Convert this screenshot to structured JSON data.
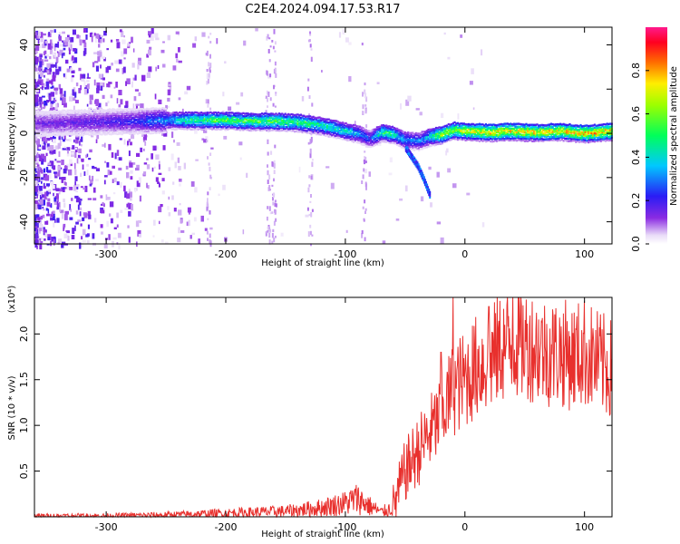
{
  "figure": {
    "title": "C2E4.2024.094.17.53.R17"
  },
  "chart_data": [
    {
      "type": "heatmap",
      "title": "C2E4.2024.094.17.53.R17",
      "xlabel": "Height of straight line (km)",
      "ylabel": "Frequency (Hz)",
      "xlim": [
        -360,
        123
      ],
      "ylim": [
        -50,
        48
      ],
      "x_ticks": [
        -300,
        -200,
        -100,
        0,
        100
      ],
      "x_tick_labels": [
        "-300",
        "-200",
        "-100",
        "0",
        "100"
      ],
      "y_ticks": [
        -40,
        -20,
        0,
        20,
        40
      ],
      "y_tick_labels": [
        "-40",
        "-20",
        "0",
        "20",
        "40"
      ],
      "colorbar": {
        "label": "Normalized spectral amplitude",
        "range": [
          0,
          1
        ],
        "ticks": [
          0.0,
          0.2,
          0.4,
          0.6,
          0.8
        ],
        "tick_labels": [
          "0.0",
          "0.2",
          "0.4",
          "0.6",
          "0.8"
        ],
        "colormap": "rainbow (white-violet-blue-cyan-green-yellow-red-magenta)"
      },
      "ridge": {
        "x": [
          -355,
          -320,
          -280,
          -250,
          -230,
          -200,
          -180,
          -160,
          -140,
          -120,
          -100,
          -90,
          -80,
          -70,
          -60,
          -50,
          -40,
          -30,
          -20,
          -10,
          0,
          20,
          40,
          60,
          80,
          100,
          123
        ],
        "y": [
          5,
          5.5,
          6,
          6.5,
          6.5,
          6.5,
          6,
          6,
          5.5,
          4,
          1.5,
          0.5,
          -2,
          1,
          0,
          -2.5,
          -3,
          -1,
          0,
          2,
          1.5,
          1,
          1.5,
          1,
          1.5,
          0.5,
          1.5
        ],
        "amplitude": [
          0.15,
          0.18,
          0.22,
          0.35,
          0.55,
          0.6,
          0.58,
          0.6,
          0.58,
          0.5,
          0.45,
          0.38,
          0.25,
          0.55,
          0.48,
          0.35,
          0.32,
          0.45,
          0.72,
          0.7,
          0.75,
          0.78,
          0.8,
          0.78,
          0.8,
          0.85,
          0.8
        ]
      },
      "branch": {
        "x": [
          -50,
          -45,
          -40,
          -35,
          -30
        ],
        "y": [
          -6,
          -10,
          -14,
          -20,
          -27
        ]
      }
    },
    {
      "type": "line",
      "xlabel": "Height of straight line (km)",
      "ylabel": "SNR (10 * v/v)",
      "y_scale_note": "(x10⁴)",
      "xlim": [
        -360,
        123
      ],
      "ylim": [
        0,
        2.4
      ],
      "x_ticks": [
        -300,
        -200,
        -100,
        0,
        100
      ],
      "x_tick_labels": [
        "-300",
        "-200",
        "-100",
        "0",
        "100"
      ],
      "y_ticks": [
        0.5,
        1.0,
        1.5,
        2.0
      ],
      "y_tick_labels": [
        "0.5",
        "1.0",
        "1.5",
        "2.0"
      ],
      "line_color": "#e8302d",
      "series": [
        {
          "x": [
            -360,
            -300,
            -250,
            -200,
            -150,
            -120,
            -100,
            -90,
            -80,
            -70,
            -60,
            -50,
            -40,
            -30,
            -20,
            -10,
            0,
            10,
            20,
            30,
            40,
            50,
            60,
            70,
            80,
            90,
            100,
            110,
            123
          ],
          "values": [
            0.01,
            0.01,
            0.02,
            0.04,
            0.06,
            0.1,
            0.15,
            0.2,
            0.12,
            0.05,
            0.1,
            0.5,
            0.7,
            0.9,
            1.1,
            1.4,
            1.5,
            1.65,
            1.7,
            1.85,
            1.9,
            1.9,
            1.85,
            1.8,
            1.8,
            1.75,
            1.8,
            1.7,
            1.6
          ],
          "peaks_x": [
            -20,
            -10,
            20,
            40
          ],
          "peaks_y": [
            1.8,
            2.4,
            2.3,
            2.4
          ]
        }
      ]
    }
  ]
}
